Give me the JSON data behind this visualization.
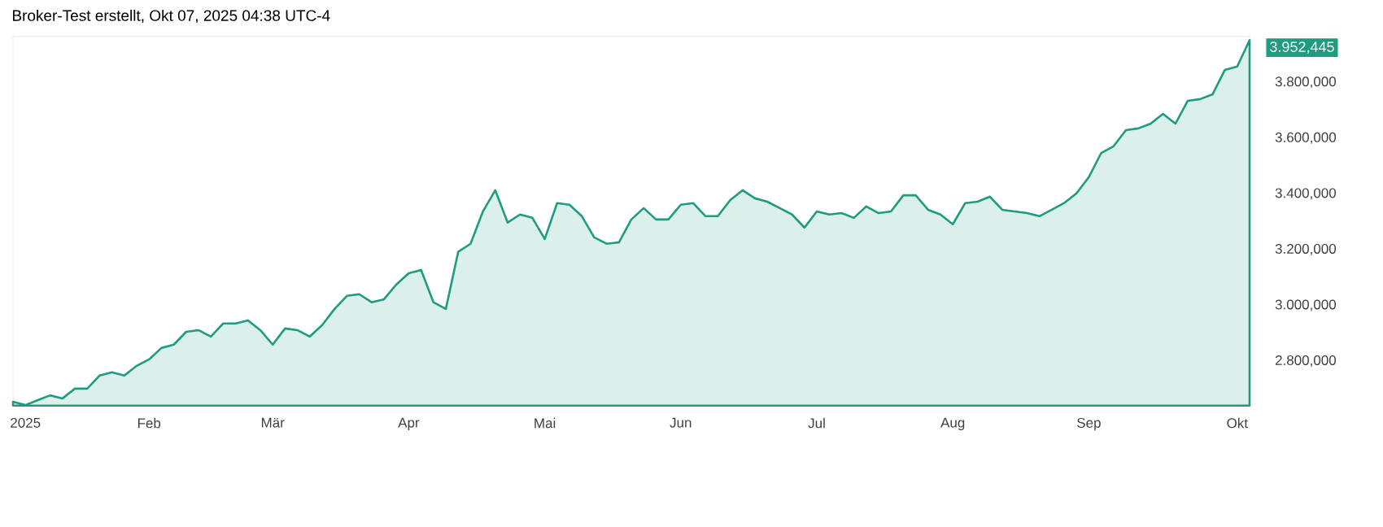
{
  "chart_data": {
    "type": "area",
    "title": "Broker-Test erstellt, Okt 07, 2025 04:38 UTC-4",
    "categories": [
      null,
      "2025",
      null,
      null,
      null,
      null,
      null,
      null,
      null,
      null,
      null,
      "Feb",
      null,
      null,
      null,
      null,
      null,
      null,
      null,
      null,
      null,
      "Mär",
      null,
      null,
      null,
      null,
      null,
      null,
      null,
      null,
      null,
      null,
      "Apr",
      null,
      null,
      null,
      null,
      null,
      null,
      null,
      null,
      null,
      null,
      "Mai",
      null,
      null,
      null,
      null,
      null,
      null,
      null,
      null,
      null,
      null,
      "Jun",
      null,
      null,
      null,
      null,
      null,
      null,
      null,
      null,
      null,
      null,
      "Jul",
      null,
      null,
      null,
      null,
      null,
      null,
      null,
      null,
      null,
      null,
      "Aug",
      null,
      null,
      null,
      null,
      null,
      null,
      null,
      null,
      null,
      null,
      "Sep",
      null,
      null,
      null,
      null,
      null,
      null,
      null,
      null,
      null,
      null,
      null,
      "Okt",
      null
    ],
    "series": [
      {
        "color": "#1f9b80",
        "values": [
          2654,
          2642,
          2660,
          2677,
          2666,
          2701,
          2701,
          2748,
          2760,
          2748,
          2783,
          2806,
          2847,
          2859,
          2905,
          2911,
          2888,
          2935,
          2935,
          2946,
          2911,
          2859,
          2917,
          2911,
          2888,
          2929,
          2987,
          3034,
          3040,
          3011,
          3022,
          3075,
          3115,
          3127,
          3011,
          2987,
          3192,
          3221,
          3337,
          3413,
          3297,
          3326,
          3314,
          3238,
          3367,
          3361,
          3320,
          3244,
          3221,
          3226,
          3308,
          3349,
          3308,
          3308,
          3361,
          3367,
          3320,
          3320,
          3378,
          3413,
          3384,
          3372,
          3349,
          3326,
          3279,
          3337,
          3326,
          3331,
          3314,
          3355,
          3331,
          3337,
          3395,
          3395,
          3343,
          3326,
          3291,
          3367,
          3372,
          3390,
          3343,
          3337,
          3331,
          3320,
          3343,
          3367,
          3402,
          3460,
          3547,
          3571,
          3629,
          3635,
          3652,
          3687,
          3652,
          3734,
          3740,
          3757,
          3845,
          3857,
          3952
        ]
      }
    ],
    "ylim": [
      2640,
      3965
    ],
    "yticks": [
      {
        "value": 2800,
        "label": "2.800,000"
      },
      {
        "value": 3000,
        "label": "3.000,000"
      },
      {
        "value": 3200,
        "label": "3.200,000"
      },
      {
        "value": 3400,
        "label": "3.400,000"
      },
      {
        "value": 3600,
        "label": "3.600,000"
      },
      {
        "value": 3800,
        "label": "3.800,000"
      }
    ],
    "annotations": [
      "3.952,445"
    ]
  }
}
